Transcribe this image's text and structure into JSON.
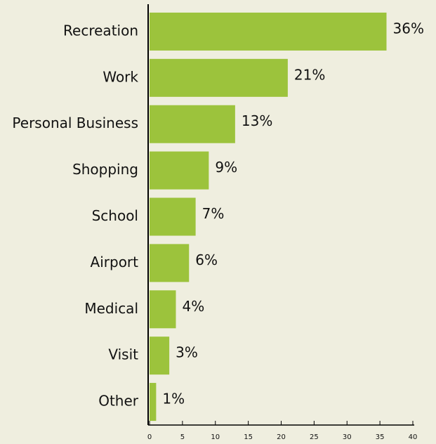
{
  "chart_data": {
    "type": "hbar",
    "categories": [
      "Recreation",
      "Work",
      "Personal Business",
      "Shopping",
      "School",
      "Airport",
      "Medical",
      "Visit",
      "Other"
    ],
    "values": [
      36,
      21,
      13,
      9,
      7,
      6,
      4,
      3,
      1
    ],
    "value_labels": [
      "36%",
      "21%",
      "13%",
      "9%",
      "7%",
      "6%",
      "4%",
      "3%",
      "1%"
    ],
    "color": "#9cc33c",
    "xlim": [
      0,
      40
    ],
    "xticks": [
      0,
      5,
      10,
      15,
      20,
      25,
      30,
      35,
      40
    ]
  }
}
